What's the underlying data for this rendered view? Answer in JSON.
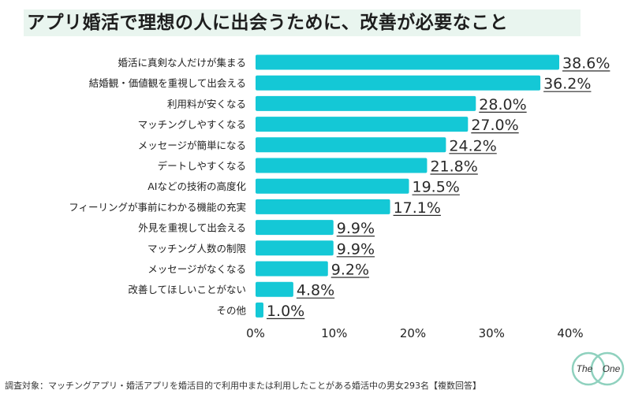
{
  "title": "アプリ婚活で理想の人に出会うために、改善が必要なこと",
  "footnote": "調査対象：マッチングアプリ・婚活アプリを婚活目的で利用中または利用したことがある婚活中の男女293名【複数回答】",
  "logo": {
    "left_text": "The",
    "right_text": "One"
  },
  "colors": {
    "bar": "#14c8d6",
    "title_highlight": "#e9f5ef",
    "logo_ring": "#8fd1be"
  },
  "chart_data": {
    "type": "bar",
    "orientation": "horizontal",
    "categories": [
      "婚活に真剣な人だけが集まる",
      "結婚観・価値観を重視して出会える",
      "利用料が安くなる",
      "マッチングしやすくなる",
      "メッセージが簡単になる",
      "デートしやすくなる",
      "AIなどの技術の高度化",
      "フィーリングが事前にわかる機能の充実",
      "外見を重視して出会える",
      "マッチング人数の制限",
      "メッセージがなくなる",
      "改善してほしいことがない",
      "その他"
    ],
    "values": [
      38.6,
      36.2,
      28.0,
      27.0,
      24.2,
      21.8,
      19.5,
      17.1,
      9.9,
      9.9,
      9.2,
      4.8,
      1.0
    ],
    "value_labels": [
      "38.6%",
      "36.2%",
      "28.0%",
      "27.0%",
      "24.2%",
      "21.8%",
      "19.5%",
      "17.1%",
      "9.9%",
      "9.9%",
      "9.2%",
      "4.8%",
      "1.0%"
    ],
    "xlim": [
      0,
      40
    ],
    "xticks": [
      0,
      10,
      20,
      30,
      40
    ],
    "xtick_labels": [
      "0%",
      "10%",
      "20%",
      "30%",
      "40%"
    ],
    "grid": false,
    "legend": false
  }
}
